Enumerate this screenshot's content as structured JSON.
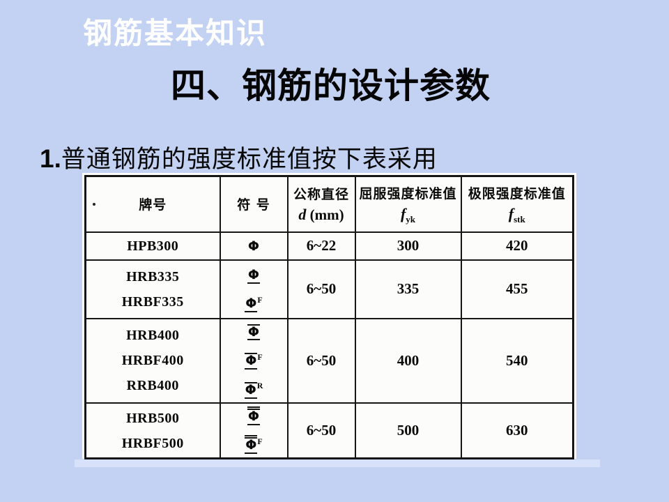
{
  "slide": {
    "background_color": "#c3d1f3",
    "kicker": "钢筋基本知识",
    "title": "四、钢筋的设计参数",
    "point_number": "1.",
    "point_text": "普通钢筋的强度标准值按下表采用"
  },
  "table": {
    "headers": [
      {
        "title": "牌号"
      },
      {
        "title": "符  号"
      },
      {
        "title": "公称直径",
        "var": "d",
        "rest": " (mm)"
      },
      {
        "title": "屈服强度标准值",
        "var": "f",
        "sub": "yk"
      },
      {
        "title": "极限强度标准值",
        "var": "f",
        "sub": "stk"
      }
    ],
    "rows": [
      {
        "grades": [
          "HPB300"
        ],
        "symbols": [
          {
            "base": "Φ",
            "deco": "plain",
            "sup": ""
          }
        ],
        "diameter": "6~22",
        "fyk": "300",
        "fstk": "420"
      },
      {
        "grades": [
          "HRB335",
          "HRBF335"
        ],
        "symbols": [
          {
            "base": "Φ",
            "deco": "u",
            "sup": ""
          },
          {
            "base": "Φ",
            "deco": "u",
            "sup": "F"
          }
        ],
        "diameter": "6~50",
        "fyk": "335",
        "fstk": "455"
      },
      {
        "grades": [
          "HRB400",
          "HRBF400",
          "RRB400"
        ],
        "symbols": [
          {
            "base": "Φ",
            "deco": "tb",
            "sup": ""
          },
          {
            "base": "Φ",
            "deco": "tb",
            "sup": "F"
          },
          {
            "base": "Φ",
            "deco": "tb",
            "sup": "R"
          }
        ],
        "diameter": "6~50",
        "fyk": "400",
        "fstk": "540"
      },
      {
        "grades": [
          "HRB500",
          "HRBF500"
        ],
        "symbols": [
          {
            "base": "Φ",
            "deco": "dt",
            "sup": ""
          },
          {
            "base": "Φ",
            "deco": "dt",
            "sup": "F"
          }
        ],
        "diameter": "6~50",
        "fyk": "500",
        "fstk": "630"
      }
    ]
  }
}
